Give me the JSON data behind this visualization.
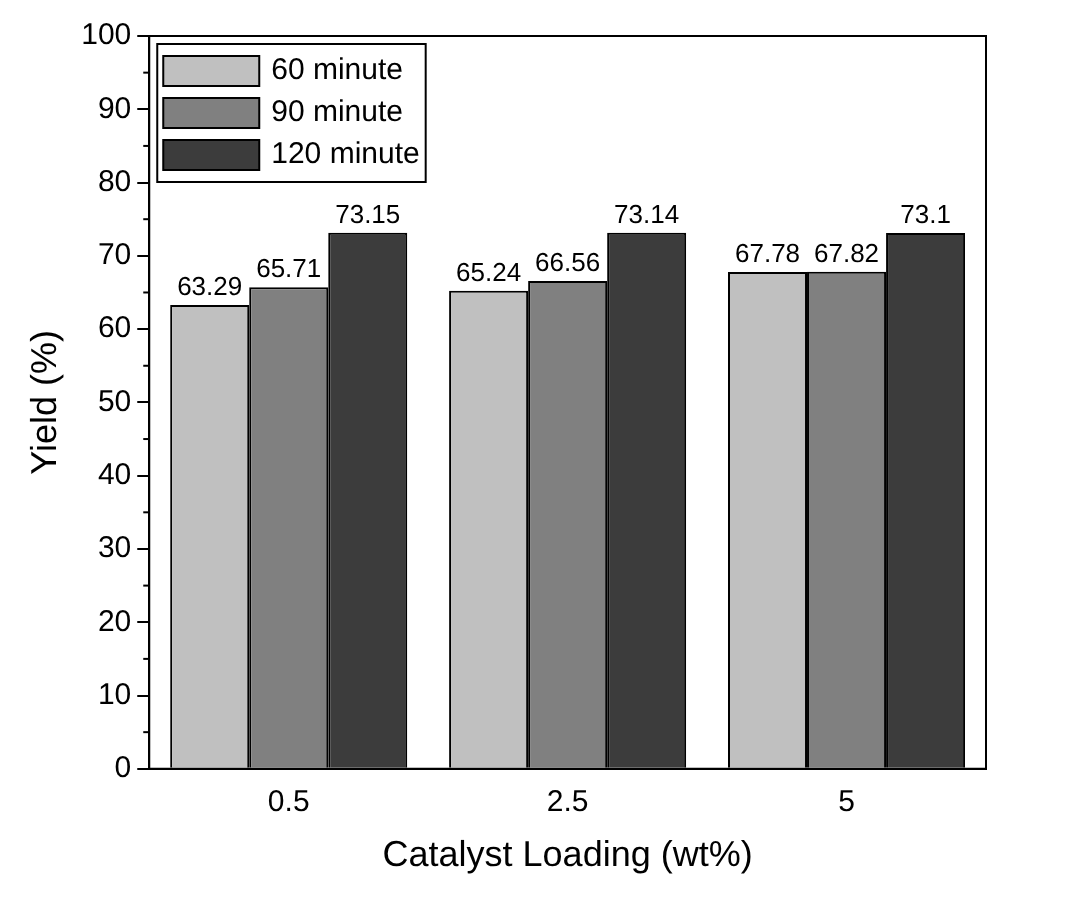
{
  "chart_data": {
    "type": "bar",
    "xlabel": "Catalyst Loading (wt%)",
    "ylabel": "Yield (%)",
    "categories": [
      "0.5",
      "2.5",
      "5"
    ],
    "series": [
      {
        "name": "60 minute",
        "color": "#c0c0c0",
        "values": [
          63.29,
          65.24,
          67.78
        ]
      },
      {
        "name": "90 minute",
        "color": "#808080",
        "values": [
          65.71,
          66.56,
          67.82
        ]
      },
      {
        "name": "120 minute",
        "color": "#3c3c3c",
        "values": [
          73.15,
          73.14,
          73.1
        ]
      }
    ],
    "ylim": [
      0,
      100
    ],
    "yticks": [
      0,
      10,
      20,
      30,
      40,
      50,
      60,
      70,
      80,
      90,
      100
    ],
    "data_labels": true,
    "legend": "top left",
    "grid": false
  }
}
